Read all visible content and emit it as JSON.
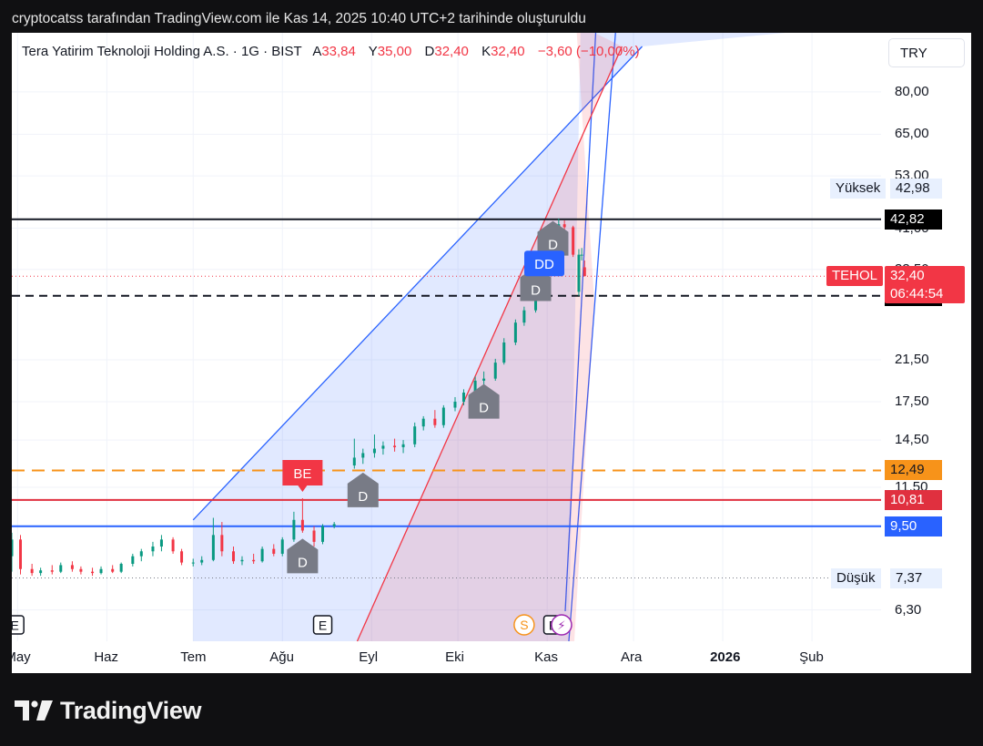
{
  "header": {
    "caption": "cryptocatss tarafından TradingView.com ile Kas 14, 2025 10:40 UTC+2 tarihinde oluşturuldu"
  },
  "legend": {
    "symbol": "Tera Yatirim Teknoloji Holding A.S. · 1G · BIST",
    "open_label": "A",
    "open": "33,84",
    "high_label": "Y",
    "high": "35,00",
    "low_label": "D",
    "low": "32,40",
    "close_label": "K",
    "close": "32,40",
    "change": "−3,60 (−10,00%)"
  },
  "currency_button": "TRY",
  "brand": {
    "name": "TradingView"
  },
  "chart_data": {
    "type": "candlestick",
    "symbol": "TEHOL",
    "scale": "log",
    "ylim": [
      5.6,
      100
    ],
    "y_ticks": [
      {
        "label": "80,00",
        "value": 80.0
      },
      {
        "label": "65,00",
        "value": 65.0
      },
      {
        "label": "53,00",
        "value": 53.0
      },
      {
        "label": "41,00",
        "value": 41.0
      },
      {
        "label": "33,50",
        "value": 33.5
      },
      {
        "label": "21,50",
        "value": 21.5
      },
      {
        "label": "17,50",
        "value": 17.5
      },
      {
        "label": "14,50",
        "value": 14.5
      },
      {
        "label": "11,50",
        "value": 11.5
      },
      {
        "label": "6,30",
        "value": 6.3
      }
    ],
    "x_ticks": [
      {
        "label": "May",
        "date": "2025-05-01",
        "bold": false
      },
      {
        "label": "Haz",
        "date": "2025-06-01",
        "bold": false
      },
      {
        "label": "Tem",
        "date": "2025-07-01",
        "bold": false
      },
      {
        "label": "Ağu",
        "date": "2025-08-01",
        "bold": false
      },
      {
        "label": "Eyl",
        "date": "2025-09-01",
        "bold": false
      },
      {
        "label": "Eki",
        "date": "2025-10-01",
        "bold": false
      },
      {
        "label": "Kas",
        "date": "2025-11-01",
        "bold": false
      },
      {
        "label": "Ara",
        "date": "2025-12-01",
        "bold": false
      },
      {
        "label": "2026",
        "date": "2026-01-01",
        "bold": true
      },
      {
        "label": "Şub",
        "date": "2026-02-01",
        "bold": false
      }
    ],
    "xlim": [
      "2025-04-29",
      "2026-02-25"
    ],
    "up_color": "#089981",
    "down_color": "#f23645",
    "candles": [
      {
        "date": "2025-04-29",
        "o": 8.2,
        "h": 9.2,
        "l": 7.6,
        "c": 8.9
      },
      {
        "date": "2025-05-02",
        "o": 8.9,
        "h": 9.1,
        "l": 7.5,
        "c": 7.7
      },
      {
        "date": "2025-05-06",
        "o": 7.7,
        "h": 7.9,
        "l": 7.45,
        "c": 7.55
      },
      {
        "date": "2025-05-09",
        "o": 7.55,
        "h": 7.75,
        "l": 7.45,
        "c": 7.65
      },
      {
        "date": "2025-05-13",
        "o": 7.65,
        "h": 7.85,
        "l": 7.5,
        "c": 7.6
      },
      {
        "date": "2025-05-16",
        "o": 7.6,
        "h": 7.95,
        "l": 7.55,
        "c": 7.85
      },
      {
        "date": "2025-05-20",
        "o": 7.85,
        "h": 8.0,
        "l": 7.6,
        "c": 7.7
      },
      {
        "date": "2025-05-23",
        "o": 7.7,
        "h": 7.8,
        "l": 7.5,
        "c": 7.6
      },
      {
        "date": "2025-05-27",
        "o": 7.6,
        "h": 7.75,
        "l": 7.45,
        "c": 7.55
      },
      {
        "date": "2025-05-30",
        "o": 7.55,
        "h": 7.8,
        "l": 7.5,
        "c": 7.7
      },
      {
        "date": "2025-06-03",
        "o": 7.7,
        "h": 7.85,
        "l": 7.55,
        "c": 7.6
      },
      {
        "date": "2025-06-06",
        "o": 7.6,
        "h": 7.95,
        "l": 7.55,
        "c": 7.9
      },
      {
        "date": "2025-06-10",
        "o": 7.9,
        "h": 8.3,
        "l": 7.8,
        "c": 8.2
      },
      {
        "date": "2025-06-13",
        "o": 8.2,
        "h": 8.5,
        "l": 8.0,
        "c": 8.4
      },
      {
        "date": "2025-06-17",
        "o": 8.4,
        "h": 8.8,
        "l": 8.2,
        "c": 8.6
      },
      {
        "date": "2025-06-20",
        "o": 8.6,
        "h": 9.1,
        "l": 8.4,
        "c": 8.9
      },
      {
        "date": "2025-06-24",
        "o": 8.9,
        "h": 9.0,
        "l": 8.3,
        "c": 8.4
      },
      {
        "date": "2025-06-27",
        "o": 8.4,
        "h": 8.5,
        "l": 7.85,
        "c": 7.95
      },
      {
        "date": "2025-07-01",
        "o": 7.95,
        "h": 8.1,
        "l": 7.8,
        "c": 7.95
      },
      {
        "date": "2025-07-04",
        "o": 7.95,
        "h": 8.2,
        "l": 7.85,
        "c": 8.05
      },
      {
        "date": "2025-07-08",
        "o": 8.05,
        "h": 9.9,
        "l": 8.0,
        "c": 9.1
      },
      {
        "date": "2025-07-11",
        "o": 9.1,
        "h": 9.7,
        "l": 8.2,
        "c": 8.4
      },
      {
        "date": "2025-07-15",
        "o": 8.4,
        "h": 8.6,
        "l": 7.9,
        "c": 8.0
      },
      {
        "date": "2025-07-18",
        "o": 8.0,
        "h": 8.2,
        "l": 7.85,
        "c": 8.05
      },
      {
        "date": "2025-07-22",
        "o": 8.05,
        "h": 8.3,
        "l": 7.9,
        "c": 8.0
      },
      {
        "date": "2025-07-25",
        "o": 8.0,
        "h": 8.6,
        "l": 7.95,
        "c": 8.5
      },
      {
        "date": "2025-07-29",
        "o": 8.5,
        "h": 8.7,
        "l": 8.2,
        "c": 8.3
      },
      {
        "date": "2025-08-01",
        "o": 8.3,
        "h": 9.0,
        "l": 8.2,
        "c": 8.9
      },
      {
        "date": "2025-08-05",
        "o": 8.9,
        "h": 10.2,
        "l": 8.8,
        "c": 9.8
      },
      {
        "date": "2025-08-08",
        "o": 9.8,
        "h": 10.9,
        "l": 9.2,
        "c": 9.3
      },
      {
        "date": "2025-08-12",
        "o": 9.3,
        "h": 9.5,
        "l": 8.6,
        "c": 8.8
      },
      {
        "date": "2025-08-15",
        "o": 8.8,
        "h": 9.6,
        "l": 8.7,
        "c": 9.5
      },
      {
        "date": "2025-08-19",
        "o": 9.5,
        "h": 9.7,
        "l": 9.4,
        "c": 9.6
      },
      {
        "date": "2025-08-26",
        "o": 12.8,
        "h": 14.6,
        "l": 12.6,
        "c": 13.3
      },
      {
        "date": "2025-08-29",
        "o": 13.3,
        "h": 13.9,
        "l": 12.9,
        "c": 13.6
      },
      {
        "date": "2025-09-02",
        "o": 13.6,
        "h": 14.9,
        "l": 13.3,
        "c": 13.9
      },
      {
        "date": "2025-09-05",
        "o": 13.9,
        "h": 14.4,
        "l": 13.5,
        "c": 14.1
      },
      {
        "date": "2025-09-09",
        "o": 14.1,
        "h": 14.6,
        "l": 13.7,
        "c": 14.0
      },
      {
        "date": "2025-09-12",
        "o": 14.0,
        "h": 14.5,
        "l": 13.6,
        "c": 14.2
      },
      {
        "date": "2025-09-16",
        "o": 14.2,
        "h": 15.8,
        "l": 14.0,
        "c": 15.5
      },
      {
        "date": "2025-09-19",
        "o": 15.5,
        "h": 16.3,
        "l": 15.2,
        "c": 16.1
      },
      {
        "date": "2025-09-23",
        "o": 16.1,
        "h": 16.8,
        "l": 15.4,
        "c": 15.6
      },
      {
        "date": "2025-09-26",
        "o": 15.6,
        "h": 17.2,
        "l": 15.4,
        "c": 17.0
      },
      {
        "date": "2025-09-30",
        "o": 17.0,
        "h": 17.9,
        "l": 16.7,
        "c": 17.5
      },
      {
        "date": "2025-10-03",
        "o": 17.5,
        "h": 18.6,
        "l": 17.2,
        "c": 18.3
      },
      {
        "date": "2025-10-07",
        "o": 18.3,
        "h": 19.8,
        "l": 18.1,
        "c": 19.4
      },
      {
        "date": "2025-10-10",
        "o": 19.4,
        "h": 20.3,
        "l": 19.0,
        "c": 19.6
      },
      {
        "date": "2025-10-14",
        "o": 19.6,
        "h": 21.6,
        "l": 19.4,
        "c": 21.2
      },
      {
        "date": "2025-10-17",
        "o": 21.2,
        "h": 23.9,
        "l": 21.0,
        "c": 23.4
      },
      {
        "date": "2025-10-21",
        "o": 23.4,
        "h": 26.2,
        "l": 23.1,
        "c": 25.8
      },
      {
        "date": "2025-10-24",
        "o": 25.8,
        "h": 27.9,
        "l": 25.4,
        "c": 27.4
      },
      {
        "date": "2025-10-28",
        "o": 27.4,
        "h": 32.4,
        "l": 27.1,
        "c": 31.9
      },
      {
        "date": "2025-10-31",
        "o": 31.9,
        "h": 38.0,
        "l": 31.5,
        "c": 37.5
      },
      {
        "date": "2025-11-03",
        "o": 37.5,
        "h": 42.1,
        "l": 37.0,
        "c": 41.1
      },
      {
        "date": "2025-11-05",
        "o": 41.1,
        "h": 42.98,
        "l": 40.3,
        "c": 41.8
      },
      {
        "date": "2025-11-07",
        "o": 41.8,
        "h": 42.6,
        "l": 40.6,
        "c": 41.2
      },
      {
        "date": "2025-11-10",
        "o": 41.2,
        "h": 41.5,
        "l": 35.6,
        "c": 36.0
      },
      {
        "date": "2025-11-12",
        "o": 30.0,
        "h": 37.0,
        "l": 29.42,
        "c": 36.0
      },
      {
        "date": "2025-11-13",
        "o": 36.0,
        "h": 37.2,
        "l": 35.0,
        "c": 36.0
      },
      {
        "date": "2025-11-14",
        "o": 33.84,
        "h": 35.0,
        "l": 32.4,
        "c": 32.4
      }
    ],
    "horizontal_lines": [
      {
        "value": 42.82,
        "color": "#131722",
        "style": "solid",
        "label": "42,82",
        "label_bg": "#000000",
        "label_fg": "#ffffff"
      },
      {
        "value": 29.42,
        "color": "#131722",
        "style": "dashed",
        "label": "29,42",
        "label_bg": "#000000",
        "label_fg": "#ffffff"
      },
      {
        "value": 12.49,
        "color": "#f7931a",
        "style": "dashed",
        "label": "12,49",
        "label_bg": "#f7931a",
        "label_fg": "#131722"
      },
      {
        "value": 10.81,
        "color": "#e0303f",
        "style": "solid",
        "label": "10,81",
        "label_bg": "#e0303f",
        "label_fg": "#ffffff"
      },
      {
        "value": 9.5,
        "color": "#2962ff",
        "style": "solid",
        "label": "9,50",
        "label_bg": "#2962ff",
        "label_fg": "#ffffff"
      }
    ],
    "last_price": {
      "value": 32.4,
      "symbol": "TEHOL",
      "price": "32,40",
      "countdown": "06:44:54",
      "color": "#f23645"
    },
    "high_marker": {
      "label": "Yüksek",
      "value": 42.98,
      "text": "42,98"
    },
    "low_marker": {
      "label": "Düşük",
      "value": 7.37,
      "text": "7,37"
    },
    "channels": [
      {
        "name": "blue",
        "fill": "rgba(41,98,255,0.14)",
        "stroke": "#2962ff",
        "upper": [
          [
            "2025-07-01",
            9.8
          ],
          [
            "2025-12-04",
            100
          ]
        ],
        "lower": [
          [
            "2025-07-01",
            5.6
          ],
          [
            "2025-07-01",
            5.6
          ]
        ]
      },
      {
        "name": "red",
        "fill": "rgba(242,54,69,0.14)",
        "stroke": "#f23645",
        "upper": [
          [
            "2025-11-03",
            100
          ],
          [
            "2025-11-03",
            100
          ]
        ],
        "lower": [
          [
            "2025-08-27",
            5.6
          ],
          [
            "2025-11-27",
            100
          ]
        ]
      }
    ],
    "events": [
      {
        "type": "dividend",
        "label": "D",
        "date": "2025-08-08",
        "value": 8.1
      },
      {
        "type": "dividend",
        "label": "D",
        "date": "2025-08-29",
        "value": 11.2
      },
      {
        "type": "dividend",
        "label": "D",
        "date": "2025-10-10",
        "value": 17.3
      },
      {
        "type": "dividend",
        "label": "D",
        "date": "2025-10-28",
        "value": 30.8
      },
      {
        "type": "dividend",
        "label": "D",
        "date": "2025-11-03",
        "value": 38.5
      },
      {
        "type": "split",
        "label": "DD",
        "date": "2025-10-31",
        "value": 34.8
      },
      {
        "type": "breakeven",
        "label": "BE",
        "date": "2025-08-08",
        "value": 11.6
      }
    ],
    "bottom_events": [
      {
        "label": "E",
        "date": "2025-04-30",
        "kind": "earnings"
      },
      {
        "label": "E",
        "date": "2025-08-15",
        "kind": "earnings"
      },
      {
        "label": "S",
        "date": "2025-10-24",
        "kind": "split"
      },
      {
        "label": "E",
        "date": "2025-11-03",
        "kind": "earnings"
      },
      {
        "label": "⚡",
        "date": "2025-11-06",
        "kind": "flash"
      }
    ]
  }
}
